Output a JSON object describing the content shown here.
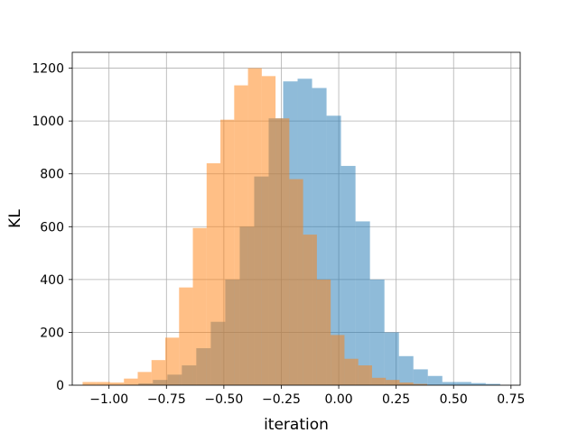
{
  "chart_data": {
    "type": "bar",
    "subtype": "overlapping-histogram",
    "title": "",
    "xlabel": "iteration",
    "ylabel": "KL",
    "xlim": [
      -1.16,
      0.79
    ],
    "ylim": [
      0,
      1260
    ],
    "grid": true,
    "legend": "none",
    "x_ticks": [
      -1.0,
      -0.75,
      -0.5,
      -0.25,
      0.0,
      0.25,
      0.5,
      0.75
    ],
    "x_tick_labels": [
      "−1.00",
      "−0.75",
      "−0.50",
      "−0.25",
      "0.00",
      "0.25",
      "0.50",
      "0.75"
    ],
    "y_ticks": [
      0,
      200,
      400,
      600,
      800,
      1000,
      1200
    ],
    "y_tick_labels": [
      "0",
      "200",
      "400",
      "600",
      "800",
      "1000",
      "1200"
    ],
    "series": [
      {
        "color": "#1f77b4",
        "alpha": 0.5,
        "bin_edges": [
          -0.935,
          -0.872,
          -0.809,
          -0.746,
          -0.683,
          -0.62,
          -0.557,
          -0.494,
          -0.431,
          -0.368,
          -0.305,
          -0.242,
          -0.179,
          -0.116,
          -0.053,
          0.01,
          0.073,
          0.136,
          0.199,
          0.262,
          0.325,
          0.388,
          0.451,
          0.514,
          0.577,
          0.64,
          0.703
        ],
        "counts": [
          2,
          7,
          20,
          40,
          75,
          140,
          240,
          400,
          600,
          790,
          1010,
          1150,
          1160,
          1125,
          1020,
          830,
          620,
          400,
          200,
          110,
          60,
          35,
          12,
          12,
          8,
          5
        ]
      },
      {
        "color": "#ff7f0e",
        "alpha": 0.5,
        "bin_edges": [
          -1.115,
          -1.055,
          -0.995,
          -0.935,
          -0.875,
          -0.815,
          -0.755,
          -0.695,
          -0.635,
          -0.575,
          -0.515,
          -0.455,
          -0.395,
          -0.335,
          -0.275,
          -0.215,
          -0.155,
          -0.095,
          -0.035,
          0.025,
          0.085,
          0.145,
          0.205,
          0.265,
          0.325,
          0.385
        ],
        "counts": [
          12,
          12,
          10,
          25,
          50,
          95,
          180,
          370,
          595,
          840,
          1005,
          1135,
          1200,
          1170,
          1010,
          780,
          570,
          400,
          190,
          100,
          75,
          28,
          20,
          10,
          5
        ]
      }
    ]
  }
}
